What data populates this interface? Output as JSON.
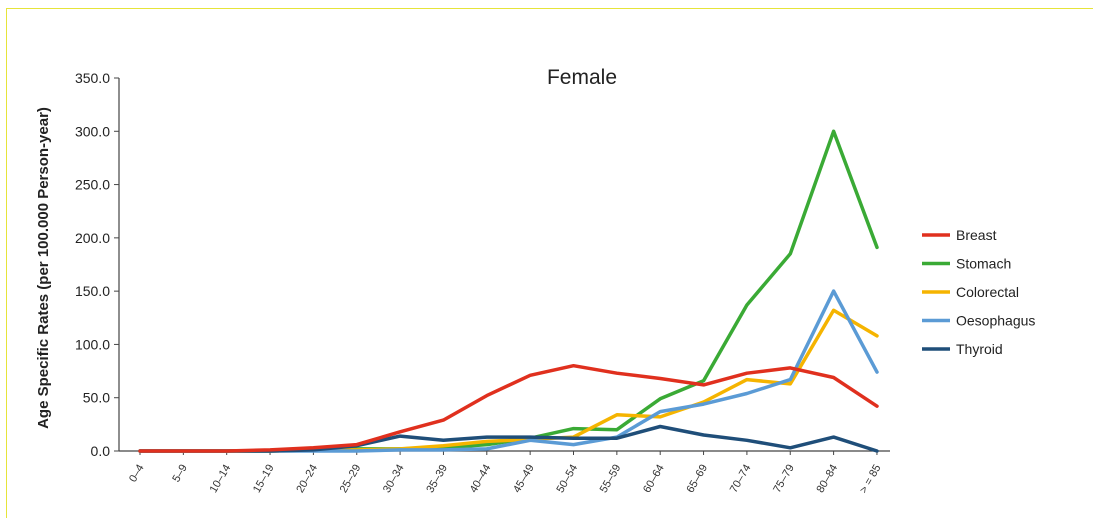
{
  "chart_data": {
    "type": "line",
    "title": "Female",
    "xlabel": "",
    "ylabel": "Age Specific Rates (per 100.000 Person-year)",
    "ylim": [
      0,
      350
    ],
    "yticks": [
      "0.0",
      "50.0",
      "100.0",
      "150.0",
      "200.0",
      "250.0",
      "300.0",
      "350.0"
    ],
    "categories": [
      "0–4",
      "5–9",
      "10–14",
      "15–19",
      "20–24",
      "25–29",
      "30–34",
      "35–39",
      "40–44",
      "45–49",
      "50–54",
      "55–59",
      "60–64",
      "65–69",
      "70–74",
      "75–79",
      "80–84",
      "> = 85"
    ],
    "grid": false,
    "legend_position": "right",
    "series": [
      {
        "name": "Breast",
        "color": "#e0301e",
        "values": [
          0,
          0,
          0,
          1,
          3,
          6,
          18,
          29,
          52,
          71,
          80,
          73,
          68,
          62,
          73,
          78,
          69,
          42
        ]
      },
      {
        "name": "Stomach",
        "color": "#3aaa35",
        "values": [
          0,
          0,
          0,
          0,
          1,
          2,
          2,
          3,
          6,
          12,
          21,
          20,
          49,
          66,
          137,
          185,
          300,
          191
        ]
      },
      {
        "name": "Colorectal",
        "color": "#f5b400",
        "values": [
          0,
          0,
          0,
          0,
          1,
          1,
          2,
          5,
          9,
          11,
          13,
          34,
          32,
          46,
          67,
          63,
          132,
          108
        ]
      },
      {
        "name": "Oesophagus",
        "color": "#5b9bd5",
        "values": [
          0,
          0,
          0,
          0,
          0,
          0,
          1,
          1,
          2,
          10,
          6,
          13,
          37,
          44,
          54,
          67,
          150,
          74
        ]
      },
      {
        "name": "Thyroid",
        "color": "#1f4e79",
        "values": [
          0,
          0,
          0,
          0,
          1,
          5,
          14,
          10,
          13,
          13,
          12,
          12,
          23,
          15,
          10,
          3,
          13,
          0
        ]
      }
    ]
  }
}
